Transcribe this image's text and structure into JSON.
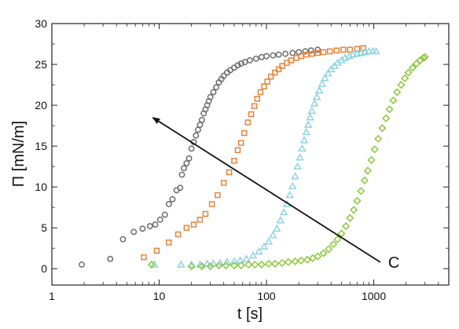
{
  "chart_data": {
    "type": "scatter",
    "title": "",
    "xlabel": "t [s]",
    "ylabel": "Π [mN/m]",
    "xscale": "log",
    "xlim": [
      1,
      5000
    ],
    "ylim": [
      -2,
      30
    ],
    "xticks": [
      1,
      10,
      100,
      1000
    ],
    "xtick_labels": [
      "1",
      "10",
      "100",
      "1000"
    ],
    "yticks": [
      0,
      5,
      10,
      15,
      20,
      25,
      30
    ],
    "ytick_labels": [
      "0",
      "5",
      "10",
      "15",
      "20",
      "25",
      "30"
    ],
    "grid": false,
    "legend": "none",
    "annotations": [
      {
        "text": "C",
        "arrow_from": [
          1150,
          0.8
        ],
        "arrow_to": [
          8.7,
          18.5
        ]
      }
    ],
    "series": [
      {
        "marker": "circle",
        "color": "#6b6b6b",
        "x": [
          1.9,
          3.5,
          4.6,
          5.8,
          7,
          8.2,
          9.2,
          10.2,
          11.3,
          12.3,
          13.3,
          14.5,
          15.7,
          16.3,
          17,
          18,
          19,
          20,
          21,
          22,
          23,
          24,
          25,
          26,
          27,
          28,
          29,
          30,
          32,
          34,
          36,
          38,
          40,
          43,
          46,
          50,
          54,
          58,
          63,
          70,
          80,
          90,
          100,
          115,
          130,
          150,
          175,
          200,
          230,
          260,
          300
        ],
        "y": [
          0.5,
          1.2,
          3.6,
          4.5,
          4.9,
          5.2,
          5.4,
          6.0,
          6.6,
          7.9,
          8.5,
          9.6,
          9.9,
          11.5,
          12.3,
          12.9,
          13.5,
          14.7,
          15.5,
          16.3,
          17.0,
          17.6,
          18.2,
          19.0,
          19.5,
          20.0,
          20.5,
          21.0,
          21.6,
          22.2,
          22.8,
          23.2,
          23.6,
          24.0,
          24.3,
          24.6,
          24.9,
          25.1,
          25.3,
          25.5,
          25.7,
          25.9,
          26.0,
          26.1,
          26.2,
          26.3,
          26.4,
          26.5,
          26.6,
          26.7,
          26.8
        ]
      },
      {
        "marker": "square",
        "color": "#e8823a",
        "x": [
          7.2,
          9.5,
          12.3,
          15,
          18,
          21,
          24,
          27,
          31,
          35,
          40,
          45,
          50,
          54,
          58,
          62,
          67,
          72,
          77,
          82,
          88,
          95,
          102,
          110,
          120,
          130,
          140,
          155,
          170,
          190,
          210,
          235,
          265,
          300,
          340,
          390,
          450,
          520,
          600,
          700,
          800
        ],
        "y": [
          1.4,
          2.2,
          3.2,
          4.2,
          5.0,
          5.4,
          6.0,
          6.7,
          7.9,
          9.0,
          10.5,
          11.8,
          13.2,
          14.5,
          15.4,
          16.6,
          17.9,
          18.9,
          19.9,
          20.8,
          21.6,
          22.3,
          22.9,
          23.5,
          24.0,
          24.4,
          24.8,
          25.2,
          25.5,
          25.8,
          26.0,
          26.2,
          26.3,
          26.4,
          26.5,
          26.6,
          26.7,
          26.8,
          26.8,
          26.9,
          27.0
        ]
      },
      {
        "marker": "triangle",
        "color": "#8fd3df",
        "x": [
          9,
          16,
          20,
          24,
          28,
          32,
          37,
          43,
          50,
          57,
          65,
          75,
          85,
          95,
          105,
          115,
          125,
          135,
          145,
          155,
          165,
          175,
          185,
          195,
          205,
          215,
          225,
          235,
          245,
          255,
          265,
          280,
          295,
          310,
          330,
          350,
          375,
          400,
          430,
          460,
          500,
          540,
          590,
          640,
          700,
          760,
          830,
          900,
          980,
          1050
        ],
        "y": [
          0.5,
          0.5,
          0.5,
          0.5,
          0.6,
          0.6,
          0.7,
          0.8,
          0.9,
          1.0,
          1.2,
          1.6,
          2.1,
          2.7,
          3.3,
          4.1,
          4.9,
          5.9,
          6.9,
          7.9,
          9.0,
          10.1,
          11.3,
          12.5,
          13.6,
          14.7,
          15.7,
          16.7,
          17.6,
          18.5,
          19.3,
          20.2,
          21.0,
          21.8,
          22.6,
          23.3,
          23.9,
          24.4,
          24.8,
          25.2,
          25.5,
          25.8,
          26.0,
          26.2,
          26.3,
          26.4,
          26.5,
          26.6,
          26.6,
          26.6
        ]
      },
      {
        "marker": "diamond",
        "color": "#8cc83c",
        "x": [
          8.5,
          20,
          25,
          30,
          36,
          42,
          50,
          58,
          68,
          78,
          90,
          105,
          120,
          140,
          160,
          185,
          210,
          240,
          270,
          300,
          340,
          380,
          420,
          460,
          500,
          550,
          600,
          650,
          700,
          760,
          820,
          880,
          950,
          1020,
          1100,
          1200,
          1300,
          1400,
          1520,
          1650,
          1800,
          1950,
          2100,
          2300,
          2500,
          2700,
          2900,
          3000
        ],
        "y": [
          0.5,
          0.3,
          0.3,
          0.3,
          0.4,
          0.4,
          0.4,
          0.4,
          0.5,
          0.5,
          0.5,
          0.6,
          0.6,
          0.7,
          0.8,
          0.9,
          1.0,
          1.1,
          1.3,
          1.5,
          1.9,
          2.4,
          3.0,
          3.6,
          4.3,
          5.2,
          6.2,
          7.2,
          8.3,
          9.5,
          10.8,
          12.0,
          13.3,
          14.6,
          15.9,
          17.2,
          18.4,
          19.5,
          20.6,
          21.6,
          22.5,
          23.3,
          24.0,
          24.6,
          25.1,
          25.5,
          25.8,
          25.9
        ]
      }
    ]
  }
}
